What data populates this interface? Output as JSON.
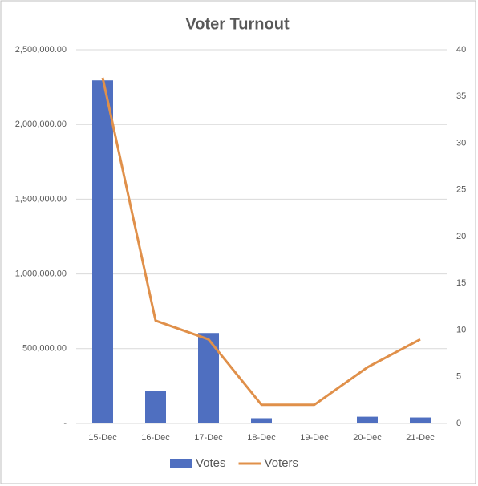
{
  "chart_data": {
    "type": "bar",
    "title": "Voter Turnout",
    "categories": [
      "15-Dec",
      "16-Dec",
      "17-Dec",
      "18-Dec",
      "19-Dec",
      "20-Dec",
      "21-Dec"
    ],
    "series": [
      {
        "name": "Votes",
        "type": "bar",
        "color": "#4f6fc0",
        "values": [
          2295000,
          215000,
          605000,
          35000,
          0,
          45000,
          40000
        ]
      },
      {
        "name": "Voters",
        "type": "line",
        "axis": "y2",
        "color": "#e0904a",
        "values": [
          37,
          11,
          9,
          2,
          2,
          6,
          9
        ]
      }
    ],
    "ylim": [
      0,
      2500000
    ],
    "yticks": [
      {
        "value": 0,
        "label": "-"
      },
      {
        "value": 500000,
        "label": "500,000.00"
      },
      {
        "value": 1000000,
        "label": "1,000,000.00"
      },
      {
        "value": 1500000,
        "label": "1,500,000.00"
      },
      {
        "value": 2000000,
        "label": "2,000,000.00"
      },
      {
        "value": 2500000,
        "label": "2,500,000.00"
      }
    ],
    "y2lim": [
      0,
      40
    ],
    "y2ticks": [
      0,
      5,
      10,
      15,
      20,
      25,
      30,
      35,
      40
    ],
    "grid": true,
    "legend": "bottom"
  }
}
